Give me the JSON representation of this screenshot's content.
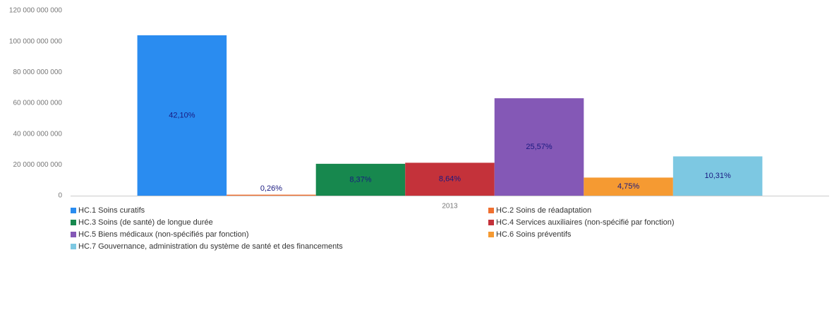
{
  "chart_data": {
    "type": "bar",
    "categories": [
      "2013"
    ],
    "ylim": [
      0,
      120000000000
    ],
    "yticks": [
      0,
      {
        "value": 20000000000,
        "label": "20 000 000 000"
      },
      {
        "value": 40000000000,
        "label": "40 000 000 000"
      },
      {
        "value": 60000000000,
        "label": "60 000 000 000"
      },
      {
        "value": 80000000000,
        "label": "80 000 000 000"
      },
      {
        "value": 100000000000,
        "label": "100 000 000 000"
      },
      {
        "value": 120000000000,
        "label": "120 000 000 000"
      }
    ],
    "grid": false,
    "legend": "bottom",
    "series": [
      {
        "name": "HC.1 Soins curatifs",
        "color": "#2a8cf0",
        "values": [
          103990000000
        ],
        "value_labels": [
          "42,10%"
        ]
      },
      {
        "name": "HC.2 Soins de réadaptation",
        "color": "#f07030",
        "values": [
          640000000
        ],
        "value_labels": [
          "0,26%"
        ]
      },
      {
        "name": "HC.3 Soins (de santé) de longue durée",
        "color": "#17884e",
        "values": [
          20670000000
        ],
        "value_labels": [
          "8,37%"
        ]
      },
      {
        "name": "HC.4 Services auxiliaires (non-spécifié par fonction)",
        "color": "#c4323a",
        "values": [
          21340000000
        ],
        "value_labels": [
          "8,64%"
        ]
      },
      {
        "name": "HC.5 Biens médicaux (non-spécifiés par fonction)",
        "color": "#8458b6",
        "values": [
          63160000000
        ],
        "value_labels": [
          "25,57%"
        ]
      },
      {
        "name": "HC.6 Soins préventifs",
        "color": "#f59a32",
        "values": [
          11730000000
        ],
        "value_labels": [
          "4,75%"
        ]
      },
      {
        "name": "HC.7 Gouvernance, administration du système de santé et des financements",
        "color": "#7dc8e2",
        "values": [
          25470000000
        ],
        "value_labels": [
          "10,31%"
        ]
      }
    ]
  }
}
